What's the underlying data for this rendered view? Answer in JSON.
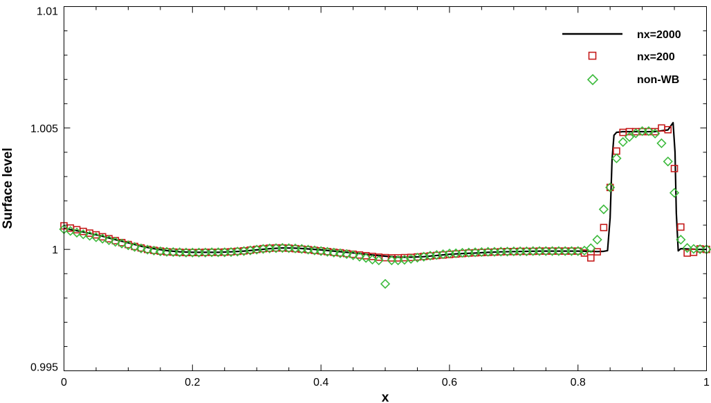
{
  "chart_data": {
    "type": "line",
    "title": "",
    "xlabel": "x",
    "ylabel": "Surface level",
    "xlim": [
      0,
      1
    ],
    "ylim": [
      0.995,
      1.01
    ],
    "x_ticks": [
      0,
      0.2,
      0.4,
      0.6,
      0.8,
      1
    ],
    "x_tick_labels": [
      "0",
      "0.2",
      "0.4",
      "0.6",
      "0.8",
      "1"
    ],
    "y_ticks": [
      0.995,
      1,
      1.005,
      1.01
    ],
    "y_tick_labels": [
      "0.995",
      "1",
      "1.005",
      "1.01"
    ],
    "grid": false,
    "legend_position": "top-right",
    "series": [
      {
        "name": "nx=2000",
        "style": "line",
        "color": "#000000",
        "x": [
          0.0,
          0.02,
          0.04,
          0.06,
          0.08,
          0.1,
          0.12,
          0.14,
          0.16,
          0.18,
          0.2,
          0.22,
          0.24,
          0.26,
          0.28,
          0.3,
          0.32,
          0.34,
          0.36,
          0.38,
          0.4,
          0.42,
          0.44,
          0.46,
          0.48,
          0.5,
          0.52,
          0.54,
          0.56,
          0.58,
          0.6,
          0.62,
          0.64,
          0.66,
          0.68,
          0.7,
          0.72,
          0.74,
          0.76,
          0.78,
          0.8,
          0.82,
          0.83,
          0.84,
          0.846,
          0.85,
          0.853,
          0.856,
          0.86,
          0.87,
          0.88,
          0.9,
          0.92,
          0.94,
          0.948,
          0.951,
          0.953,
          0.956,
          0.96,
          0.97,
          0.98,
          0.99,
          1.0
        ],
        "y": [
          1.00087,
          1.00077,
          1.00066,
          1.00054,
          1.0004,
          1.00027,
          1.00013,
          1.00003,
          0.99995,
          0.9999,
          0.99988,
          0.99988,
          0.99988,
          0.9999,
          0.99993,
          0.99998,
          1.00003,
          1.00006,
          1.00005,
          1.00002,
          0.99998,
          0.99993,
          0.99988,
          0.99983,
          0.99977,
          0.99972,
          0.99968,
          0.99968,
          0.9997,
          0.99975,
          0.9998,
          0.99983,
          0.99985,
          0.99988,
          0.9999,
          0.99991,
          0.99992,
          0.99993,
          0.99993,
          0.99993,
          0.99993,
          0.99992,
          0.99991,
          0.99992,
          0.99995,
          1.0013,
          1.0037,
          1.0047,
          1.00482,
          1.00485,
          1.00485,
          1.00485,
          1.00485,
          1.00492,
          1.00522,
          1.004,
          1.0015,
          0.99994,
          1.00003,
          1.00002,
          1.00001,
          1.0,
          1.0
        ]
      },
      {
        "name": "nx=200",
        "style": "square",
        "color": "#c41a1a",
        "x": [
          0.0,
          0.01,
          0.02,
          0.03,
          0.04,
          0.05,
          0.06,
          0.07,
          0.08,
          0.09,
          0.1,
          0.11,
          0.12,
          0.13,
          0.14,
          0.15,
          0.16,
          0.17,
          0.18,
          0.19,
          0.2,
          0.21,
          0.22,
          0.23,
          0.24,
          0.25,
          0.26,
          0.27,
          0.28,
          0.29,
          0.3,
          0.31,
          0.32,
          0.33,
          0.34,
          0.35,
          0.36,
          0.37,
          0.38,
          0.39,
          0.4,
          0.41,
          0.42,
          0.43,
          0.44,
          0.45,
          0.46,
          0.47,
          0.48,
          0.49,
          0.5,
          0.51,
          0.52,
          0.53,
          0.54,
          0.55,
          0.56,
          0.57,
          0.58,
          0.59,
          0.6,
          0.61,
          0.62,
          0.63,
          0.64,
          0.65,
          0.66,
          0.67,
          0.68,
          0.69,
          0.7,
          0.71,
          0.72,
          0.73,
          0.74,
          0.75,
          0.76,
          0.77,
          0.78,
          0.79,
          0.8,
          0.81,
          0.82,
          0.83,
          0.84,
          0.85,
          0.86,
          0.87,
          0.88,
          0.89,
          0.9,
          0.91,
          0.92,
          0.93,
          0.94,
          0.95,
          0.96,
          0.97,
          0.98,
          0.99,
          1.0
        ],
        "y": [
          1.00097,
          1.00088,
          1.00081,
          1.00074,
          1.00067,
          1.0006,
          1.00052,
          1.00044,
          1.00036,
          1.00028,
          1.0002,
          1.00012,
          1.00006,
          1.0,
          0.99996,
          0.99993,
          0.9999,
          0.99989,
          0.99988,
          0.99987,
          0.99987,
          0.99987,
          0.99988,
          0.99988,
          0.99988,
          0.99989,
          0.9999,
          0.99992,
          0.99994,
          0.99997,
          1.0,
          1.00003,
          1.00005,
          1.00006,
          1.00006,
          1.00005,
          1.00003,
          1.00001,
          0.99999,
          0.99996,
          0.99994,
          0.99991,
          0.99988,
          0.99986,
          0.99983,
          0.9998,
          0.99977,
          0.99974,
          0.99971,
          0.99968,
          0.99966,
          0.99965,
          0.99965,
          0.99966,
          0.99967,
          0.99969,
          0.99971,
          0.99973,
          0.99975,
          0.99977,
          0.99979,
          0.99981,
          0.99983,
          0.99985,
          0.99986,
          0.99987,
          0.99988,
          0.99989,
          0.9999,
          0.99991,
          0.99991,
          0.99992,
          0.99992,
          0.99992,
          0.99993,
          0.99993,
          0.99993,
          0.99993,
          0.99993,
          0.99993,
          0.99993,
          0.99985,
          0.99965,
          0.9999,
          1.0009,
          1.00255,
          1.00405,
          1.00482,
          1.00485,
          1.00485,
          1.00485,
          1.00485,
          1.00485,
          1.005,
          1.00493,
          1.00333,
          1.00092,
          0.99985,
          0.99988,
          1.00002,
          1.0
        ]
      },
      {
        "name": "non-WB",
        "style": "diamond",
        "color": "#3cba3c",
        "x": [
          0.0,
          0.01,
          0.02,
          0.03,
          0.04,
          0.05,
          0.06,
          0.07,
          0.08,
          0.09,
          0.1,
          0.11,
          0.12,
          0.13,
          0.14,
          0.15,
          0.16,
          0.17,
          0.18,
          0.19,
          0.2,
          0.21,
          0.22,
          0.23,
          0.24,
          0.25,
          0.26,
          0.27,
          0.28,
          0.29,
          0.3,
          0.31,
          0.32,
          0.33,
          0.34,
          0.35,
          0.36,
          0.37,
          0.38,
          0.39,
          0.4,
          0.41,
          0.42,
          0.43,
          0.44,
          0.45,
          0.46,
          0.47,
          0.48,
          0.49,
          0.5,
          0.51,
          0.52,
          0.53,
          0.54,
          0.55,
          0.56,
          0.57,
          0.58,
          0.59,
          0.6,
          0.61,
          0.62,
          0.63,
          0.64,
          0.65,
          0.66,
          0.67,
          0.68,
          0.69,
          0.7,
          0.71,
          0.72,
          0.73,
          0.74,
          0.75,
          0.76,
          0.77,
          0.78,
          0.79,
          0.8,
          0.81,
          0.82,
          0.83,
          0.84,
          0.85,
          0.86,
          0.87,
          0.88,
          0.89,
          0.9,
          0.91,
          0.92,
          0.93,
          0.94,
          0.95,
          0.96,
          0.97,
          0.98,
          0.99,
          1.0
        ],
        "y": [
          1.00083,
          1.00076,
          1.00069,
          1.00062,
          1.00056,
          1.0005,
          1.00044,
          1.00038,
          1.00031,
          1.00024,
          1.00017,
          1.0001,
          1.00004,
          0.99999,
          0.99995,
          0.99992,
          0.9999,
          0.99989,
          0.99988,
          0.99987,
          0.99987,
          0.99987,
          0.99987,
          0.99988,
          0.99988,
          0.99988,
          0.99989,
          0.99991,
          0.99993,
          0.99996,
          0.99999,
          1.00002,
          1.00004,
          1.00005,
          1.00006,
          1.00005,
          1.00004,
          1.00002,
          0.99999,
          0.99996,
          0.99993,
          0.9999,
          0.99987,
          0.99984,
          0.99981,
          0.99976,
          0.9997,
          0.99965,
          0.99958,
          0.99955,
          0.99858,
          0.99955,
          0.99955,
          0.99957,
          0.99961,
          0.99966,
          0.9997,
          0.99974,
          0.99977,
          0.9998,
          0.99983,
          0.99984,
          0.99986,
          0.99987,
          0.99988,
          0.99989,
          0.9999,
          0.9999,
          0.99991,
          0.99991,
          0.99992,
          0.99992,
          0.99992,
          0.99993,
          0.99993,
          0.99993,
          0.99993,
          0.99993,
          0.99993,
          0.99993,
          0.99993,
          0.99995,
          1.00005,
          1.0004,
          1.00165,
          1.00255,
          1.00375,
          1.00442,
          1.00463,
          1.00478,
          1.00487,
          1.00487,
          1.00477,
          1.00437,
          1.00362,
          1.00233,
          1.0004,
          1.00006,
          1.00002,
          1.00001,
          1.0
        ]
      }
    ]
  }
}
